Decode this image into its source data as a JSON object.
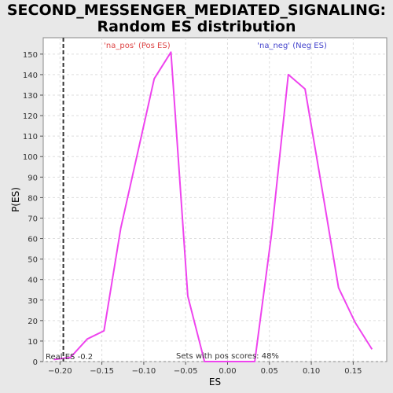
{
  "chart_data": {
    "type": "line",
    "title_line1": "SECOND_MESSENGER_MEDIATED_SIGNALING:",
    "title_line2": "Random ES distribution",
    "xlabel": "ES",
    "ylabel": "P(ES)",
    "xlim": [
      -0.22,
      0.19
    ],
    "ylim": [
      0,
      158
    ],
    "x_ticks": [
      -0.2,
      -0.15,
      -0.1,
      -0.05,
      0.0,
      0.05,
      0.1,
      0.15
    ],
    "x_tick_labels": [
      "−0.20",
      "−0.15",
      "−0.10",
      "−0.05",
      "0.00",
      "0.05",
      "0.10",
      "0.15"
    ],
    "y_ticks": [
      0,
      10,
      20,
      30,
      40,
      50,
      60,
      70,
      80,
      90,
      100,
      110,
      120,
      130,
      140,
      150
    ],
    "grid": true,
    "series": [
      {
        "color": "#ee44ee",
        "x": [
          -0.2075,
          -0.1875,
          -0.1675,
          -0.1475,
          -0.1275,
          -0.0875,
          -0.0675,
          -0.0475,
          -0.0275,
          -0.0075,
          0.0125,
          0.0325,
          0.0525,
          0.0725,
          0.0925,
          0.1125,
          0.1325,
          0.1525,
          0.1725
        ],
        "y": [
          1,
          2,
          11,
          15,
          65,
          138,
          151,
          32,
          0,
          0,
          0,
          0,
          62,
          140,
          133,
          85,
          36,
          19,
          6
        ]
      }
    ],
    "real_es": -0.196,
    "annotations": {
      "pos_label": "'na_pos' (Pos ES)",
      "neg_label": "'na_neg' (Neg ES)",
      "real_es_label": "Real ES -0.2",
      "pos_scores_label": "Sets with pos scores: 48%"
    },
    "colors": {
      "pos_label": "#dd4444",
      "neg_label": "#4444cc",
      "real_es_line": "#333333"
    }
  }
}
